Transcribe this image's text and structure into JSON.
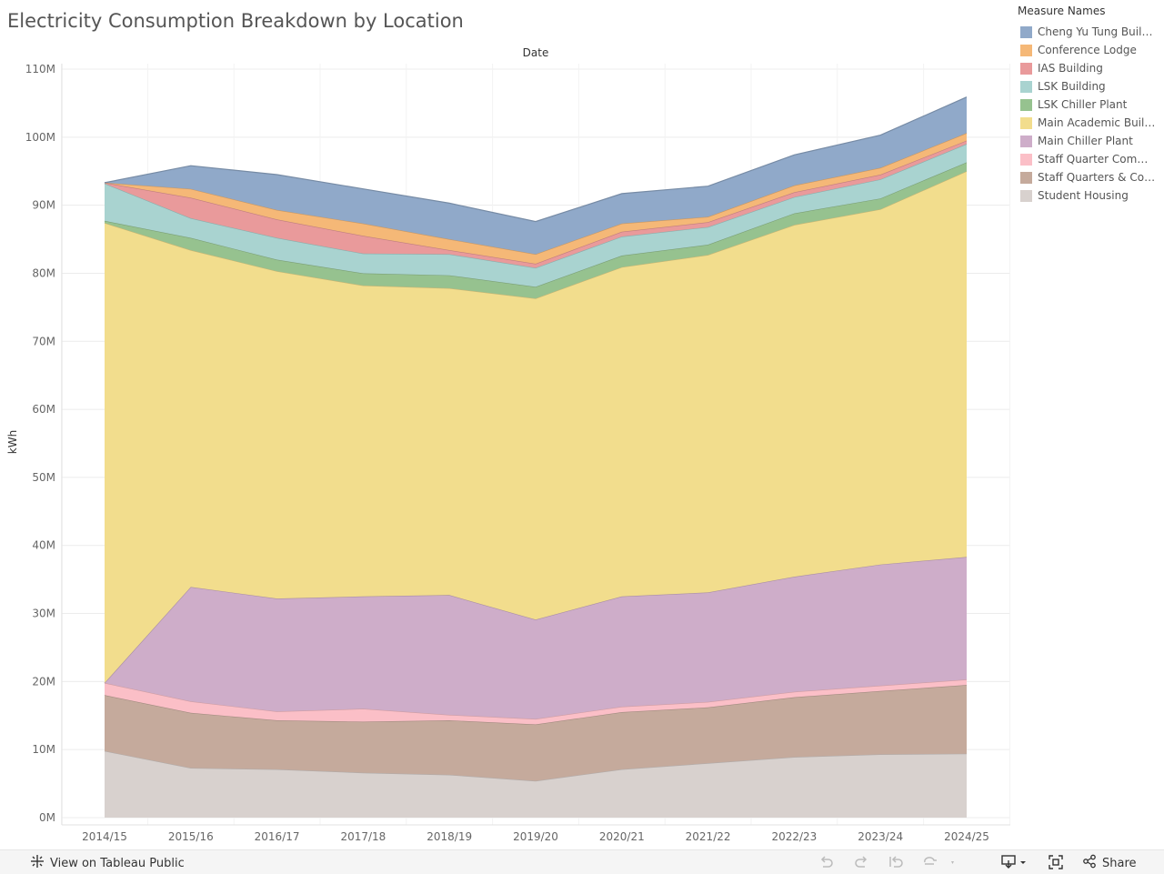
{
  "title": "Electricity Consumption Breakdown by Location",
  "legend": {
    "title": "Measure Names",
    "items": [
      {
        "label": "Cheng Yu Tung Building",
        "color": "#90a9c9"
      },
      {
        "label": "Conference Lodge",
        "color": "#f5b877"
      },
      {
        "label": "IAS Building",
        "color": "#e99a9b"
      },
      {
        "label": "LSK Building",
        "color": "#a9d3d0"
      },
      {
        "label": "LSK Chiller Plant",
        "color": "#96c28f"
      },
      {
        "label": "Main Academic Buildi...",
        "color": "#f2dd8d"
      },
      {
        "label": "Main Chiller Plant",
        "color": "#ceadc9"
      },
      {
        "label": "Staff Quarter Commo...",
        "color": "#fbbfc7"
      },
      {
        "label": "Staff Quarters & Com...",
        "color": "#c5aa9c"
      },
      {
        "label": "Student Housing",
        "color": "#d8d1ce"
      }
    ]
  },
  "chart_data": {
    "type": "area",
    "stacked": true,
    "title": "Electricity Consumption Breakdown by Location",
    "top_label": "Date",
    "xlabel": "",
    "ylabel": "kWh",
    "ylim": [
      0,
      110000000
    ],
    "yticks": [
      0,
      10000000,
      20000000,
      30000000,
      40000000,
      50000000,
      60000000,
      70000000,
      80000000,
      90000000,
      100000000,
      110000000
    ],
    "ytick_labels": [
      "0M",
      "10M",
      "20M",
      "30M",
      "40M",
      "50M",
      "60M",
      "70M",
      "80M",
      "90M",
      "100M",
      "110M"
    ],
    "categories": [
      "2014/15",
      "2015/16",
      "2016/17",
      "2017/18",
      "2018/19",
      "2019/20",
      "2020/21",
      "2021/22",
      "2022/23",
      "2023/24",
      "2024/25"
    ],
    "series": [
      {
        "name": "Student Housing",
        "color": "#d8d1ce",
        "values": [
          9.8,
          7.3,
          7.1,
          6.6,
          6.3,
          5.4,
          7.1,
          8.0,
          8.9,
          9.3,
          9.4
        ]
      },
      {
        "name": "Staff Quarters & Com...",
        "color": "#c5aa9c",
        "values": [
          8.2,
          8.1,
          7.2,
          7.5,
          8.0,
          8.3,
          8.4,
          8.2,
          8.8,
          9.3,
          10.1
        ]
      },
      {
        "name": "Staff Quarter Commo...",
        "color": "#fbbfc7",
        "values": [
          1.8,
          1.7,
          1.3,
          1.9,
          0.8,
          0.8,
          0.8,
          0.8,
          0.8,
          0.8,
          0.8
        ]
      },
      {
        "name": "Main Chiller Plant",
        "color": "#ceadc9",
        "values": [
          0.0,
          16.8,
          16.6,
          16.5,
          17.6,
          14.6,
          16.2,
          16.1,
          16.9,
          17.8,
          18.0
        ]
      },
      {
        "name": "Main Academic Buildi...",
        "color": "#f2dd8d",
        "values": [
          67.6,
          49.5,
          48.1,
          45.7,
          45.1,
          47.2,
          48.4,
          49.6,
          51.7,
          52.2,
          56.7
        ]
      },
      {
        "name": "LSK Chiller Plant",
        "color": "#96c28f",
        "values": [
          0.3,
          1.8,
          1.7,
          1.8,
          1.9,
          1.7,
          1.7,
          1.5,
          1.7,
          1.6,
          1.3
        ]
      },
      {
        "name": "LSK Building",
        "color": "#a9d3d0",
        "values": [
          5.5,
          2.9,
          3.2,
          2.9,
          3.1,
          2.8,
          2.8,
          2.6,
          2.4,
          2.8,
          2.7
        ]
      },
      {
        "name": "IAS Building",
        "color": "#e99a9b",
        "values": [
          0.1,
          3.0,
          2.7,
          2.6,
          0.6,
          0.6,
          0.7,
          0.7,
          0.7,
          0.7,
          0.5
        ]
      },
      {
        "name": "Conference Lodge",
        "color": "#f5b877",
        "values": [
          0.0,
          1.3,
          1.4,
          1.8,
          1.6,
          1.4,
          1.2,
          0.8,
          1.0,
          1.0,
          1.1
        ]
      },
      {
        "name": "Cheng Yu Tung Building",
        "color": "#90a9c9",
        "values": [
          0.0,
          3.4,
          5.2,
          5.1,
          5.3,
          4.8,
          4.4,
          4.5,
          4.5,
          4.8,
          5.3
        ]
      }
    ],
    "unit_note": "values in millions of kWh"
  },
  "footer": {
    "view_label": "View on Tableau Public",
    "share_label": "Share"
  }
}
